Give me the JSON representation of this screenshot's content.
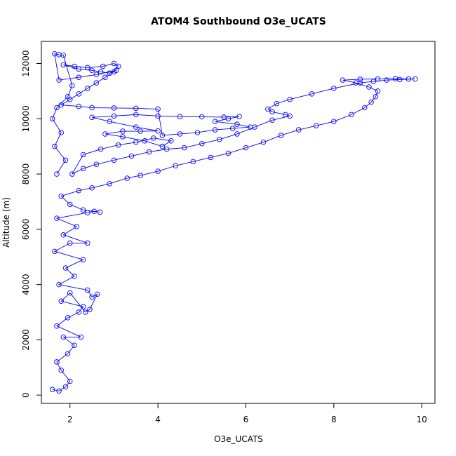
{
  "chart_data": {
    "type": "scatter",
    "title": "ATOM4 Southbound O3e_UCATS",
    "xlabel": "O3e_UCATS",
    "ylabel": "Altitude (m)",
    "xlim": [
      1.35,
      10.3
    ],
    "ylim": [
      -300,
      12800
    ],
    "xticks": [
      2,
      4,
      6,
      8,
      10
    ],
    "yticks": [
      0,
      2000,
      4000,
      6000,
      8000,
      10000,
      12000
    ],
    "marker": "open-circle",
    "connected": true,
    "color": "#0000ff",
    "series": [
      {
        "values": [
          [
            1.6,
            200
          ],
          [
            1.75,
            150
          ],
          [
            1.9,
            300
          ],
          [
            2.0,
            500
          ],
          [
            1.8,
            900
          ],
          [
            1.7,
            1200
          ],
          [
            1.95,
            1500
          ],
          [
            2.1,
            1800
          ],
          [
            1.85,
            2100
          ],
          [
            2.25,
            2100
          ],
          [
            1.7,
            2500
          ],
          [
            1.95,
            2800
          ],
          [
            2.2,
            3000
          ],
          [
            2.3,
            3200
          ],
          [
            1.8,
            3400
          ],
          [
            2.0,
            3700
          ],
          [
            2.35,
            3000
          ],
          [
            2.45,
            3100
          ],
          [
            2.62,
            3650
          ],
          [
            2.5,
            3550
          ],
          [
            2.4,
            3800
          ],
          [
            1.75,
            4000
          ],
          [
            2.1,
            4300
          ],
          [
            1.9,
            4600
          ],
          [
            2.3,
            4900
          ],
          [
            1.65,
            5200
          ],
          [
            2.0,
            5500
          ],
          [
            2.4,
            5500
          ],
          [
            1.85,
            5800
          ],
          [
            2.15,
            6100
          ],
          [
            1.7,
            6400
          ],
          [
            2.4,
            6600
          ],
          [
            2.55,
            6650
          ],
          [
            2.68,
            6620
          ],
          [
            2.3,
            6700
          ],
          [
            2.0,
            6900
          ],
          [
            1.8,
            7200
          ],
          [
            2.2,
            7400
          ],
          [
            2.5,
            7500
          ],
          [
            2.9,
            7650
          ],
          [
            3.3,
            7850
          ],
          [
            3.6,
            7950
          ],
          [
            4.0,
            8100
          ],
          [
            4.4,
            8300
          ],
          [
            4.8,
            8450
          ],
          [
            5.2,
            8600
          ],
          [
            5.6,
            8750
          ],
          [
            6.0,
            8950
          ],
          [
            6.4,
            9150
          ],
          [
            6.8,
            9400
          ],
          [
            7.2,
            9600
          ],
          [
            7.6,
            9750
          ],
          [
            8.0,
            9900
          ],
          [
            8.4,
            10150
          ],
          [
            8.7,
            10400
          ],
          [
            8.85,
            10600
          ],
          [
            8.95,
            10800
          ],
          [
            9.0,
            11000
          ],
          [
            8.8,
            11150
          ],
          [
            8.5,
            11300
          ],
          [
            8.2,
            11400
          ],
          [
            8.6,
            11430
          ],
          [
            9.0,
            11440
          ],
          [
            9.4,
            11450
          ],
          [
            9.7,
            11440
          ],
          [
            9.85,
            11440
          ],
          [
            9.5,
            11420
          ],
          [
            9.2,
            11400
          ],
          [
            8.9,
            11350
          ],
          [
            8.6,
            11300
          ],
          [
            8.0,
            11100
          ],
          [
            7.5,
            10900
          ],
          [
            7.0,
            10700
          ],
          [
            6.7,
            10550
          ],
          [
            6.5,
            10350
          ],
          [
            6.6,
            10250
          ],
          [
            6.9,
            10150
          ],
          [
            7.0,
            10100
          ],
          [
            6.6,
            9950
          ],
          [
            6.2,
            9700
          ],
          [
            5.8,
            9450
          ],
          [
            5.4,
            9250
          ],
          [
            5.0,
            9100
          ],
          [
            4.6,
            8950
          ],
          [
            4.2,
            8900
          ],
          [
            3.8,
            8800
          ],
          [
            3.4,
            8650
          ],
          [
            3.0,
            8500
          ],
          [
            2.6,
            8350
          ],
          [
            2.3,
            8200
          ],
          [
            2.05,
            8000
          ],
          [
            2.3,
            8700
          ],
          [
            2.7,
            8900
          ],
          [
            3.1,
            9050
          ],
          [
            3.5,
            9150
          ],
          [
            3.9,
            9300
          ],
          [
            4.3,
            9200
          ],
          [
            4.1,
            9000
          ],
          [
            3.7,
            9200
          ],
          [
            3.2,
            9350
          ],
          [
            2.8,
            9450
          ],
          [
            3.2,
            9550
          ],
          [
            3.6,
            9550
          ],
          [
            4.0,
            9560
          ],
          [
            3.5,
            9700
          ],
          [
            2.9,
            9900
          ],
          [
            2.5,
            10050
          ],
          [
            3.0,
            10100
          ],
          [
            3.5,
            10150
          ],
          [
            4.0,
            10100
          ],
          [
            4.5,
            10080
          ],
          [
            5.0,
            10070
          ],
          [
            5.5,
            10060
          ],
          [
            5.85,
            10080
          ],
          [
            5.6,
            10000
          ],
          [
            5.3,
            9900
          ],
          [
            5.8,
            9800
          ],
          [
            6.1,
            9700
          ],
          [
            5.7,
            9650
          ],
          [
            5.3,
            9600
          ],
          [
            4.9,
            9500
          ],
          [
            4.5,
            9450
          ],
          [
            4.1,
            9400
          ],
          [
            4.0,
            10350
          ],
          [
            3.5,
            10380
          ],
          [
            3.0,
            10390
          ],
          [
            2.5,
            10400
          ],
          [
            2.2,
            10450
          ],
          [
            1.8,
            10500
          ],
          [
            2.0,
            10700
          ],
          [
            2.2,
            10900
          ],
          [
            2.4,
            11100
          ],
          [
            2.6,
            11300
          ],
          [
            2.8,
            11500
          ],
          [
            3.0,
            11700
          ],
          [
            3.1,
            11900
          ],
          [
            3.0,
            12000
          ],
          [
            2.75,
            11900
          ],
          [
            2.4,
            11850
          ],
          [
            2.1,
            11900
          ],
          [
            1.85,
            11950
          ],
          [
            2.2,
            11800
          ],
          [
            2.5,
            11750
          ],
          [
            2.7,
            11700
          ],
          [
            2.9,
            11650
          ],
          [
            3.05,
            11750
          ],
          [
            2.6,
            11600
          ],
          [
            2.2,
            11500
          ],
          [
            1.75,
            11400
          ],
          [
            1.65,
            12350
          ],
          [
            1.75,
            12320
          ],
          [
            1.85,
            12300
          ],
          [
            2.05,
            11200
          ],
          [
            1.95,
            10800
          ],
          [
            1.7,
            10400
          ],
          [
            1.6,
            10000
          ],
          [
            1.8,
            9500
          ],
          [
            1.65,
            9000
          ],
          [
            1.9,
            8500
          ],
          [
            1.7,
            8000
          ]
        ]
      }
    ]
  }
}
